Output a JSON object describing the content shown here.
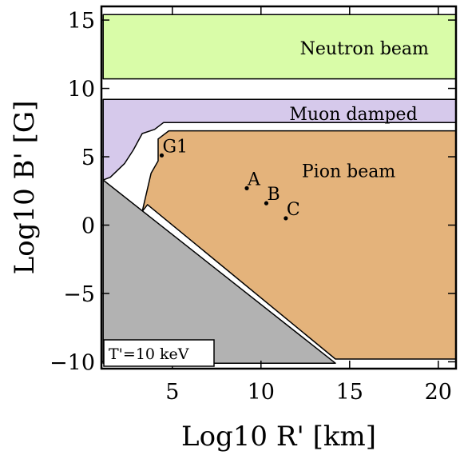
{
  "chart_data": {
    "type": "area",
    "xlabel": "Log10 R' [km]",
    "ylabel": "Log10 B' [G]",
    "xlim": [
      1,
      21
    ],
    "ylim": [
      -10.5,
      16
    ],
    "xticks": [
      5,
      10,
      15,
      20
    ],
    "yticks": [
      -10,
      -5,
      0,
      5,
      10,
      15
    ],
    "ytick_labels": [
      "−10",
      "−5",
      "0",
      "5",
      "10",
      "15"
    ],
    "grid": false,
    "legend": "none",
    "annotation": "T'=10 keV",
    "regions": [
      {
        "label": "Neutron beam",
        "color": "#d9fca8",
        "polygon": [
          [
            1.1,
            10.7
          ],
          [
            21,
            10.7
          ],
          [
            21,
            15.4
          ],
          [
            1.1,
            15.4
          ]
        ]
      },
      {
        "label": "Muon damped",
        "color": "#d6c9eb",
        "polygon": [
          [
            1.1,
            3.3
          ],
          [
            1.1,
            9.2
          ],
          [
            21,
            9.2
          ],
          [
            21,
            7.5
          ],
          [
            4.5,
            7.5
          ],
          [
            4.0,
            7.0
          ],
          [
            3.3,
            6.7
          ],
          [
            2.8,
            5.5
          ],
          [
            2.3,
            4.5
          ],
          [
            1.5,
            3.5
          ]
        ]
      },
      {
        "label": "Pion beam",
        "color": "#e4b37b",
        "polygon": [
          [
            3.6,
            1.5
          ],
          [
            3.3,
            1.0
          ],
          [
            3.8,
            3.8
          ],
          [
            4.2,
            4.7
          ],
          [
            4.2,
            6.3
          ],
          [
            4.8,
            6.9
          ],
          [
            21,
            6.9
          ],
          [
            21,
            -9.8
          ],
          [
            14.2,
            -9.8
          ]
        ]
      },
      {
        "label": "",
        "color": "#b2b2b2",
        "polygon": [
          [
            1.1,
            3.3
          ],
          [
            1.1,
            -10.1
          ],
          [
            14.2,
            -10.1
          ]
        ]
      }
    ],
    "points": [
      {
        "label": "A",
        "x": 9.2,
        "y": 2.7
      },
      {
        "label": "B",
        "x": 10.3,
        "y": 1.6
      },
      {
        "label": "C",
        "x": 11.4,
        "y": 0.5
      },
      {
        "label": "G1",
        "x": 4.4,
        "y": 5.1
      }
    ]
  }
}
